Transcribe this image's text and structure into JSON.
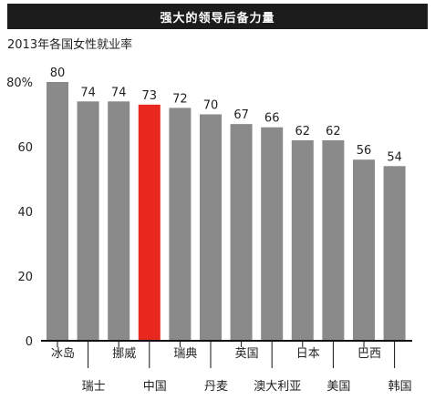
{
  "header": {
    "title": "强大的领导后备力量"
  },
  "chart_data": {
    "type": "bar",
    "title": "强大的领导后备力量",
    "subtitle": "2013年各国女性就业率",
    "categories": [
      "冰岛",
      "瑞士",
      "挪威",
      "中国",
      "瑞典",
      "丹麦",
      "英国",
      "澳大利亚",
      "日本",
      "美国",
      "巴西",
      "韩国"
    ],
    "values": [
      80,
      74,
      74,
      73,
      72,
      70,
      67,
      66,
      62,
      62,
      56,
      54
    ],
    "highlight_index": 3,
    "ylim": [
      0,
      80
    ],
    "yticks": [
      "0",
      "20",
      "40",
      "60",
      "80%"
    ],
    "ytick_values": [
      0,
      20,
      40,
      60,
      80
    ],
    "grid": false,
    "colors": {
      "bar": "#8a8a8a",
      "highlight": "#e8281e",
      "axis": "#111111",
      "header_bg": "#1c1c1c",
      "header_text": "#ffffff"
    }
  }
}
